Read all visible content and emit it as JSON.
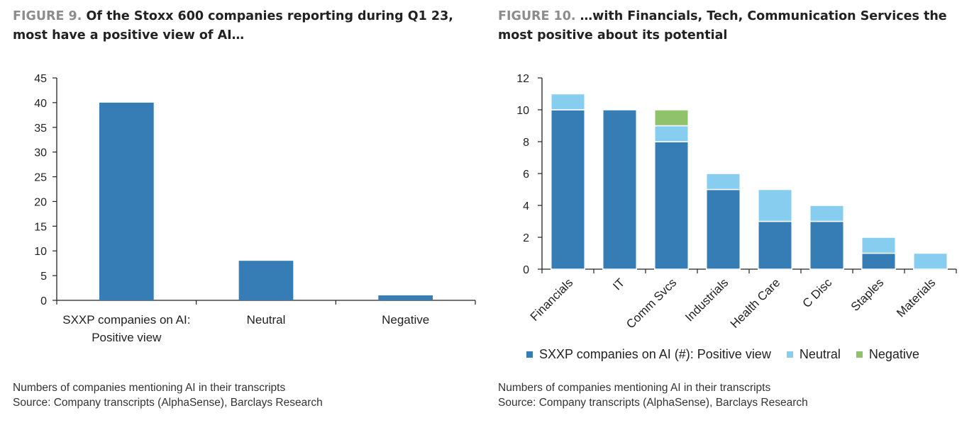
{
  "figure9": {
    "label": "FIGURE 9.",
    "title": "Of the Stoxx 600 companies reporting during Q1 23, most have a positive view of AI…",
    "footnote": {
      "line1": "Numbers of companies mentioning AI in their transcripts",
      "line2": "Source: Company transcripts (AlphaSense), Barclays Research"
    }
  },
  "figure10": {
    "label": "FIGURE 10.",
    "title": "…with Financials, Tech, Communication Services the most positive about its potential",
    "footnote": {
      "line1": "Numbers of companies mentioning AI in their transcripts",
      "line2": "Source: Company transcripts (AlphaSense), Barclays Research"
    }
  },
  "chart_data": [
    {
      "type": "bar",
      "title": "Of the Stoxx 600 companies reporting during Q1 23, most have a positive view of AI…",
      "categories": [
        "SXXP companies on AI: Positive view",
        "Neutral",
        "Negative"
      ],
      "category_lines": [
        [
          "SXXP companies on AI:",
          "Positive view"
        ],
        [
          "Neutral"
        ],
        [
          "Negative"
        ]
      ],
      "values": [
        40,
        8,
        1
      ],
      "ylim": [
        0,
        45
      ],
      "yticks": [
        0,
        5,
        10,
        15,
        20,
        25,
        30,
        35,
        40,
        45
      ],
      "xlabel": "",
      "ylabel": "",
      "color": "#357db4",
      "grid": false
    },
    {
      "type": "bar",
      "stacked": true,
      "title": "…with Financials, Tech, Communication Services the most positive about its potential",
      "categories": [
        "Financials",
        "IT",
        "Comm Svcs",
        "Industrials",
        "Health Care",
        "C Disc",
        "Staples",
        "Materials"
      ],
      "series": [
        {
          "name": "SXXP companies on AI (#): Positive view",
          "color": "#357db4",
          "values": [
            10,
            10,
            8,
            5,
            3,
            3,
            1,
            0
          ]
        },
        {
          "name": "Neutral",
          "color": "#86cdf0",
          "values": [
            1,
            0,
            1,
            1,
            2,
            1,
            1,
            1
          ]
        },
        {
          "name": "Negative",
          "color": "#8fc26b",
          "values": [
            0,
            0,
            1,
            0,
            0,
            0,
            0,
            0
          ]
        }
      ],
      "ylim": [
        0,
        12
      ],
      "yticks": [
        0,
        2,
        4,
        6,
        8,
        10,
        12
      ],
      "xlabel": "",
      "ylabel": "",
      "legend_position": "bottom",
      "grid": false
    }
  ]
}
